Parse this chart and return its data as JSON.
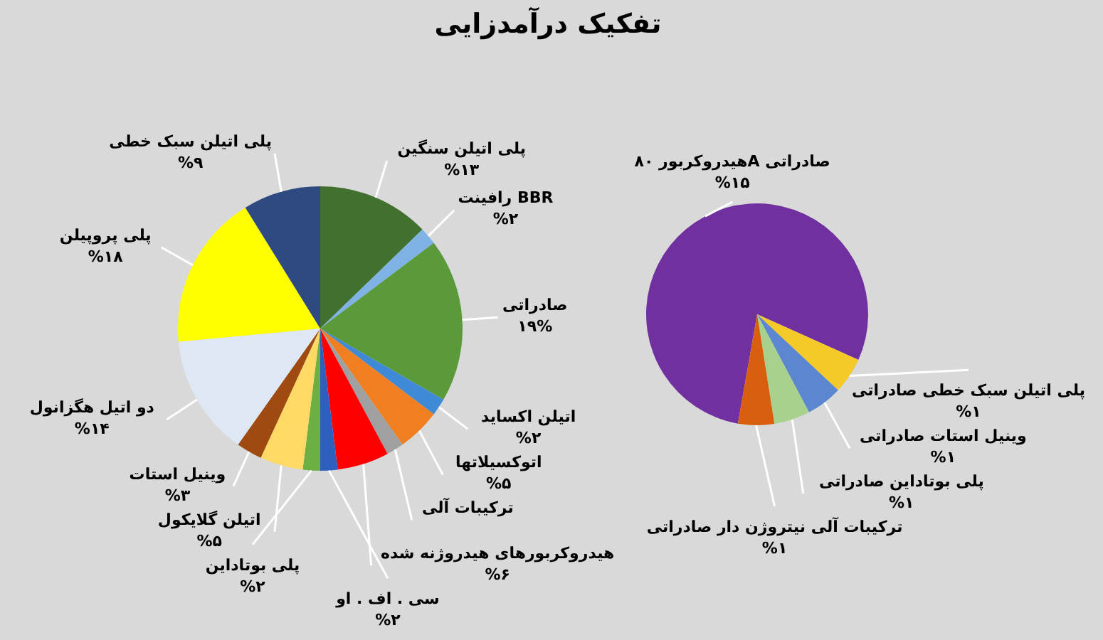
{
  "chart_data": [
    {
      "type": "pie",
      "title": "تفکیک درآمدزایی",
      "categories": [
        "پلی اتیلن سنگین",
        "رافینت BBR",
        "صادراتی",
        "اتیلن اکساید",
        "اتوکسیلاتها",
        "ترکیبات آلی",
        "هیدروکربورهای هیدروژنه شده",
        "سی . اف . او",
        "پلی بوتاداین",
        "اتیلن گلایکول",
        "وینیل استات",
        "دو اتیل هگزانول",
        "پلی پروپیلن",
        "پلی اتیلن سبک خطی"
      ],
      "values": [
        13,
        2,
        19,
        2,
        5,
        2,
        6,
        2,
        2,
        5,
        3,
        14,
        18,
        9
      ],
      "value_labels": [
        "%۱۳",
        "%۲",
        "۱۹%",
        "%۲",
        "%۵",
        null,
        "%۶",
        "%۲",
        "%۲",
        "%۵",
        "%۳",
        "%۱۴",
        "%۱۸",
        "%۹"
      ],
      "colors": [
        "#41702f",
        "#7fb2e5",
        "#5a9a3a",
        "#3f8ad6",
        "#f07f22",
        "#a0a0a0",
        "#ff0000",
        "#2e5fc0",
        "#6cb043",
        "#ffd966",
        "#9e4a10",
        "#dde8f4",
        "#ffff00",
        "#2e4a80"
      ]
    },
    {
      "type": "pie",
      "categories": [
        "هیدروکربور ۸۰A صادراتی",
        "پلی اتیلن سبک خطی صادراتی",
        "وینیل استات صادراتی",
        "پلی بوتاداین صادراتی",
        "ترکیبات آلی نیتروژن دار صادراتی"
      ],
      "values": [
        15,
        1,
        1,
        1,
        1
      ],
      "value_labels": [
        "%۱۵",
        "%۱",
        "%۱",
        "%۱",
        "%۱"
      ],
      "colors": [
        "#7030a0",
        "#f5c928",
        "#5b86d0",
        "#a9d18e",
        "#d95f0e"
      ]
    }
  ]
}
